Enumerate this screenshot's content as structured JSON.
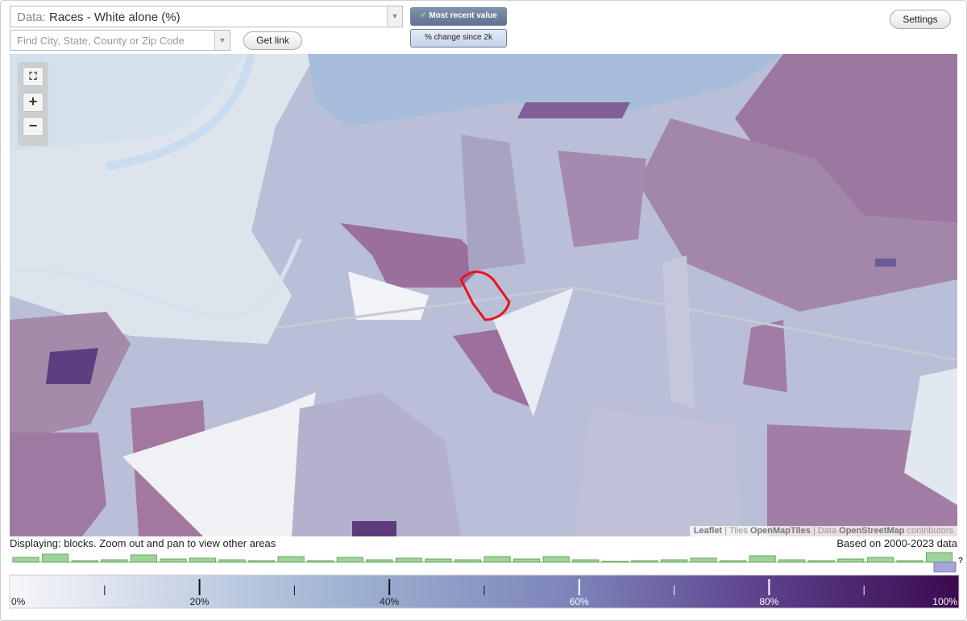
{
  "toolbar": {
    "data_label": "Data:",
    "data_value": "Races - White alone (%)",
    "search_placeholder": "Find City, State, County or Zip Code",
    "get_link": "Get link",
    "most_recent": "Most recent value",
    "pct_change": "% change since 2k",
    "settings": "Settings"
  },
  "map": {
    "zoom_in": "+",
    "zoom_out": "−",
    "attribution": {
      "leaflet": "Leaflet",
      "tiles": "| Tiles",
      "tiles_source": "OpenMapTiles",
      "data": "| Data",
      "data_source": "OpenStreetMap",
      "contributors": "contributors"
    }
  },
  "status": {
    "displaying": "Displaying: blocks. Zoom out and pan to view other areas",
    "based_on": "Based on 2000-2023 data",
    "help": "?"
  },
  "legend": {
    "labels": [
      "0%",
      "20%",
      "40%",
      "60%",
      "80%",
      "100%"
    ]
  }
}
